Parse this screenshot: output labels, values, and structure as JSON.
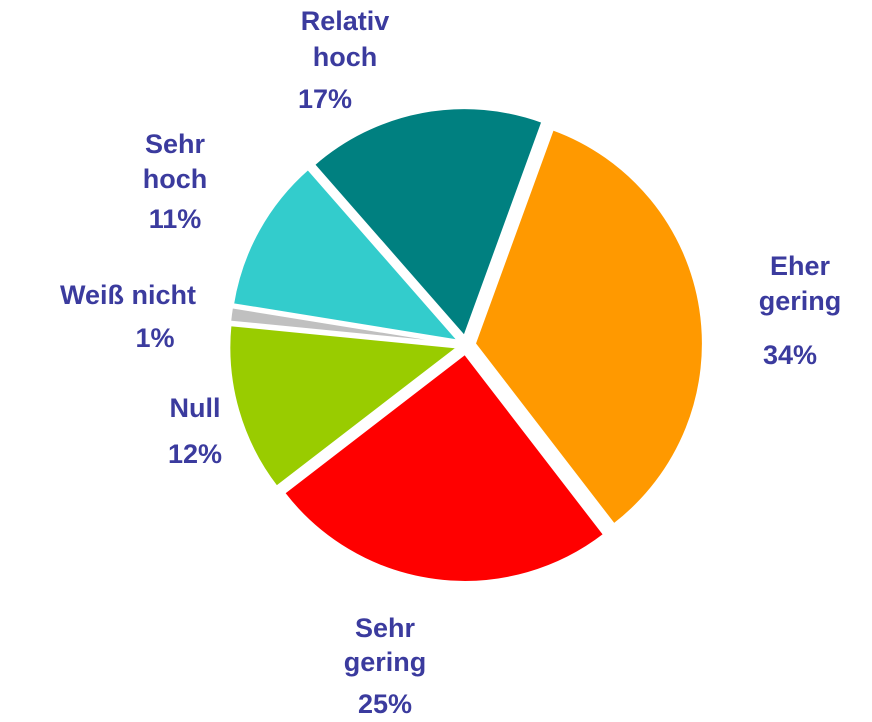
{
  "chart_data": {
    "type": "pie",
    "categories": [
      [
        "Eher",
        "gering"
      ],
      [
        "Sehr",
        "gering"
      ],
      [
        "Null"
      ],
      [
        "Weiß nicht"
      ],
      [
        "Sehr",
        "hoch"
      ],
      [
        "Relativ",
        "hoch"
      ]
    ],
    "values": [
      34,
      25,
      12,
      1,
      11,
      17
    ],
    "value_labels": [
      "34%",
      "25%",
      "12%",
      "1%",
      "11%",
      "17%"
    ],
    "colors": [
      "#ff9900",
      "#ff0000",
      "#99cc00",
      "#c0c0c0",
      "#33cccc",
      "#008080"
    ]
  }
}
